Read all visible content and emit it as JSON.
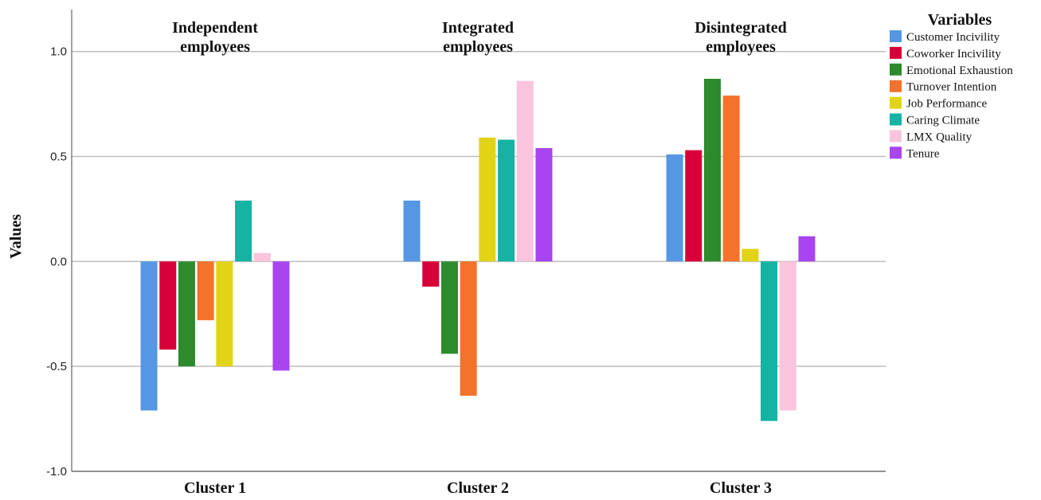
{
  "chart_data": {
    "type": "bar",
    "ylabel": "Values",
    "ylim": [
      -1.0,
      1.2
    ],
    "yticks": [
      "-1.0",
      "-0.5",
      "0.0",
      "0.5",
      "1.0"
    ],
    "ytick_values": [
      -1.0,
      -0.5,
      0.0,
      0.5,
      1.0
    ],
    "grid": true,
    "categories": [
      "Cluster 1",
      "Cluster 2",
      "Cluster 3"
    ],
    "cluster_labels": [
      [
        "Independent",
        "employees"
      ],
      [
        "Integrated",
        "employees"
      ],
      [
        "Disintegrated",
        "employees"
      ]
    ],
    "legend": {
      "title": "Variables",
      "placement": "top-right"
    },
    "series": [
      {
        "name": "Customer Incivility",
        "color": "#5597e3",
        "values": [
          -0.71,
          0.29,
          0.51
        ]
      },
      {
        "name": "Coworker Incivility",
        "color": "#d8003a",
        "values": [
          -0.42,
          -0.12,
          0.53
        ]
      },
      {
        "name": "Emotional Exhaustion",
        "color": "#2d8a2d",
        "values": [
          -0.5,
          -0.44,
          0.87
        ]
      },
      {
        "name": "Turnover Intention",
        "color": "#f3722c",
        "values": [
          -0.28,
          -0.64,
          0.79
        ]
      },
      {
        "name": "Job Performance",
        "color": "#e1d417",
        "values": [
          -0.5,
          0.59,
          0.06
        ]
      },
      {
        "name": "Caring Climate",
        "color": "#14b3a3",
        "values": [
          0.29,
          0.58,
          -0.76
        ]
      },
      {
        "name": "LMX Quality",
        "color": "#f9c4dc",
        "values": [
          0.04,
          0.86,
          -0.71
        ]
      },
      {
        "name": "Tenure",
        "color": "#a845f0",
        "values": [
          -0.52,
          0.54,
          0.12
        ]
      }
    ]
  }
}
